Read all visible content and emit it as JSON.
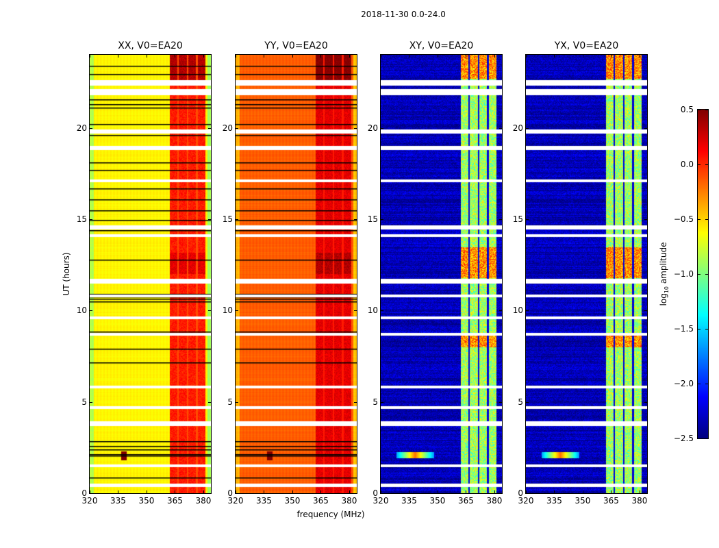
{
  "figure_title": "2018-11-30 0.0-24.0",
  "chart_data": {
    "type": "heatmap",
    "panels": [
      {
        "title": "XX, V0=EA20",
        "base": -0.6,
        "band": 0.05,
        "style": "auto"
      },
      {
        "title": "YY, V0=EA20",
        "base": -0.15,
        "band": 0.2,
        "style": "auto"
      },
      {
        "title": "XY, V0=EA20",
        "base": -2.35,
        "band": -0.9,
        "style": "cross"
      },
      {
        "title": "YX, V0=EA20",
        "base": -2.35,
        "band": -0.9,
        "style": "cross"
      }
    ],
    "xlabel": "frequency (MHz)",
    "ylabel": "UT (hours)",
    "xlim": [
      320,
      384
    ],
    "ylim": [
      0,
      24
    ],
    "xticks": [
      "320",
      "335",
      "350",
      "365",
      "380"
    ],
    "yticks": [
      "0",
      "5",
      "10",
      "15",
      "20"
    ],
    "band_mhz": [
      [
        362,
        366
      ],
      [
        367,
        371
      ],
      [
        372,
        376
      ],
      [
        377,
        381
      ]
    ],
    "flagged_hours": [
      22.55,
      22.4,
      22.05,
      21.95,
      21.85,
      19.85,
      19.75,
      18.95,
      18.85,
      17.1,
      14.6,
      14.5,
      14.1,
      11.65,
      11.55,
      10.8,
      9.6,
      8.7,
      5.8,
      4.7,
      3.85,
      3.75,
      1.5,
      0.45,
      0.4
    ],
    "black_line_hours": [
      23.4,
      22.95,
      21.55,
      21.3,
      21.1,
      20.2,
      19.6,
      18.1,
      17.7,
      17.15,
      16.7,
      16.1,
      15.5,
      14.95,
      14.4,
      12.8,
      10.9,
      10.75,
      10.65,
      10.5,
      8.85,
      7.9,
      7.15,
      2.85,
      2.6,
      2.4,
      2.15,
      2.05,
      0.85
    ],
    "colorbar": {
      "label": "log10 amplitude",
      "label_main": "log",
      "label_sub": "10",
      "label_rest": " amplitude",
      "vmin": -2.5,
      "vmax": 0.5,
      "ticks": [
        "0.5",
        "0.0",
        "−0.5",
        "−1.0",
        "−1.5",
        "−2.0",
        "−2.5"
      ],
      "colormap": "jet"
    }
  }
}
